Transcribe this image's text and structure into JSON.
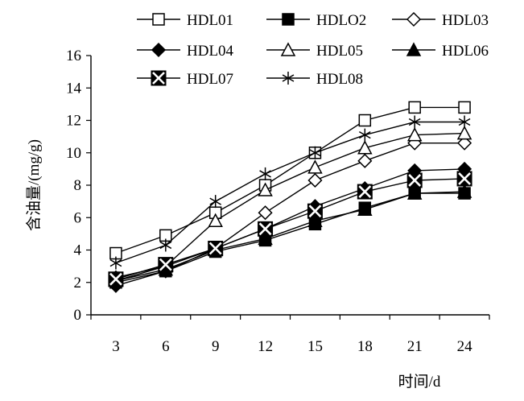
{
  "chart_data": {
    "type": "line",
    "xlabel": "时间/d",
    "ylabel": "含油量/(mg/g)",
    "ylim": [
      0,
      16
    ],
    "yticks": [
      0,
      2,
      4,
      6,
      8,
      10,
      12,
      14,
      16
    ],
    "x": [
      3,
      6,
      9,
      12,
      15,
      18,
      21,
      24
    ],
    "xticks": [
      "3",
      "6",
      "9",
      "12",
      "15",
      "18",
      "21",
      "24"
    ],
    "legend_position": "top",
    "grid": false,
    "series": [
      {
        "name": "HDL01",
        "marker": "square-open",
        "values": [
          3.8,
          4.9,
          6.3,
          8.0,
          10.0,
          12.0,
          12.8,
          12.8
        ]
      },
      {
        "name": "HDLO2",
        "marker": "square-filled",
        "values": [
          2.0,
          2.7,
          3.9,
          4.6,
          5.6,
          6.6,
          7.5,
          7.5
        ]
      },
      {
        "name": "HDL03",
        "marker": "diamond-open",
        "values": [
          2.3,
          3.0,
          4.1,
          6.3,
          8.3,
          9.5,
          10.6,
          10.6
        ]
      },
      {
        "name": "HDL04",
        "marker": "diamond-filled",
        "values": [
          1.8,
          2.7,
          4.1,
          5.3,
          6.7,
          7.8,
          8.9,
          9.0
        ]
      },
      {
        "name": "HDL05",
        "marker": "triangle-open",
        "values": [
          2.1,
          3.0,
          5.8,
          7.7,
          9.1,
          10.3,
          11.1,
          11.2
        ]
      },
      {
        "name": "HDL06",
        "marker": "triangle-filled",
        "values": [
          2.1,
          2.8,
          4.0,
          4.7,
          5.8,
          6.5,
          7.5,
          7.6
        ]
      },
      {
        "name": "HDL07",
        "marker": "square-x",
        "values": [
          2.2,
          3.1,
          4.1,
          5.3,
          6.4,
          7.6,
          8.3,
          8.4
        ]
      },
      {
        "name": "HDL08",
        "marker": "star",
        "values": [
          3.2,
          4.3,
          7.0,
          8.7,
          10.0,
          11.1,
          11.9,
          11.9
        ]
      }
    ]
  }
}
